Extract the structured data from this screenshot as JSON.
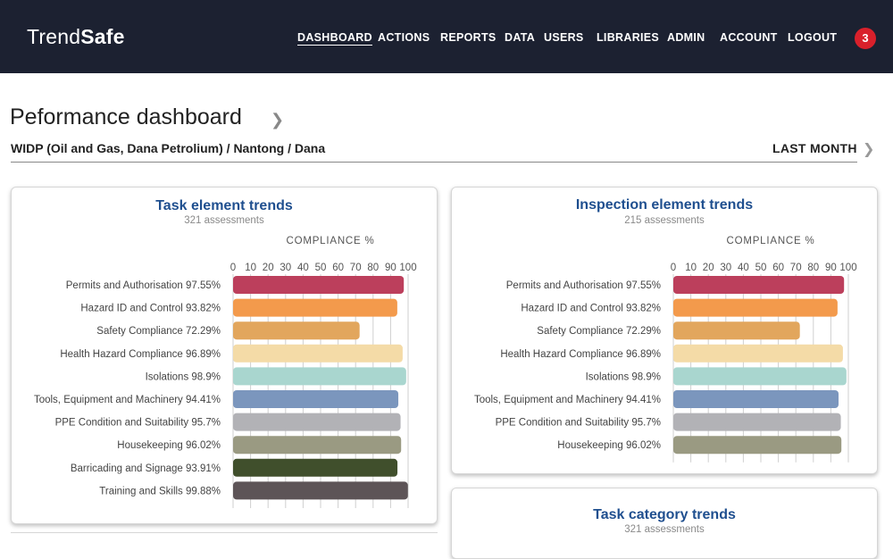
{
  "app": {
    "brand_part1": "Trend",
    "brand_part2": "Safe",
    "notification_count": "3"
  },
  "nav": [
    {
      "label": "DASHBOARD",
      "active": true
    },
    {
      "label": "ACTIONS"
    },
    {
      "label": "REPORTS"
    },
    {
      "label": "DATA"
    },
    {
      "label": "USERS"
    },
    {
      "label": "LIBRARIES"
    },
    {
      "label": "ADMIN"
    },
    {
      "label": "ACCOUNT"
    },
    {
      "label": "LOGOUT"
    }
  ],
  "page": {
    "title": "Peformance dashboard",
    "breadcrumb": "WIDP (Oil and Gas, Dana Petrolium) / Nantong / Dana",
    "period": "LAST MONTH"
  },
  "colors": {
    "header_bg": "#1c2131",
    "title_blue": "#1f4f8f",
    "badge_red": "#d9202b"
  },
  "cards": {
    "task": {
      "title": "Task element trends",
      "subtitle": "321 assessments"
    },
    "inspection": {
      "title": "Inspection element trends",
      "subtitle": "215 assessments"
    },
    "category": {
      "title": "Task category trends",
      "subtitle": "321 assessments"
    }
  },
  "chart_data": [
    {
      "type": "bar",
      "orientation": "horizontal",
      "xlabel": "COMPLIANCE %",
      "xlim": [
        0,
        100
      ],
      "ticks": [
        0,
        10,
        20,
        30,
        40,
        50,
        60,
        70,
        80,
        90,
        100
      ],
      "grid": true,
      "categories": [
        "Permits and Authorisation 97.55%",
        "Hazard ID and Control 93.82%",
        "Safety Compliance  72.29%",
        "Health Hazard Compliance 96.89%",
        "Isolations  98.9%",
        "Tools, Equipment and Machinery 94.41%",
        "PPE Condition and Suitability  95.7%",
        "Housekeeping  96.02%",
        "Barricading and Signage 93.91%",
        "Training and Skills 99.88%"
      ],
      "values": [
        97.55,
        93.82,
        72.29,
        96.89,
        98.9,
        94.41,
        95.7,
        96.02,
        93.91,
        99.88
      ],
      "colors": [
        "#bc3f5c",
        "#f39a4c",
        "#e2a65d",
        "#f4dba7",
        "#a9d6cf",
        "#7b96bd",
        "#b2b2b6",
        "#9a9a82",
        "#404f2c",
        "#5d5457"
      ]
    },
    {
      "type": "bar",
      "orientation": "horizontal",
      "xlabel": "COMPLIANCE %",
      "xlim": [
        0,
        100
      ],
      "ticks": [
        0,
        10,
        20,
        30,
        40,
        50,
        60,
        70,
        80,
        90,
        100
      ],
      "grid": true,
      "categories": [
        "Permits and Authorisation 97.55%",
        "Hazard ID and Control 93.82%",
        "Safety Compliance  72.29%",
        "Health Hazard Compliance 96.89%",
        "Isolations  98.9%",
        "Tools, Equipment and Machinery 94.41%",
        "PPE Condition and Suitability  95.7%",
        "Housekeeping  96.02%"
      ],
      "values": [
        97.55,
        93.82,
        72.29,
        96.89,
        98.9,
        94.41,
        95.7,
        96.02
      ],
      "colors": [
        "#bc3f5c",
        "#f39a4c",
        "#e2a65d",
        "#f4dba7",
        "#a9d6cf",
        "#7b96bd",
        "#b2b2b6",
        "#9a9a82"
      ]
    }
  ]
}
